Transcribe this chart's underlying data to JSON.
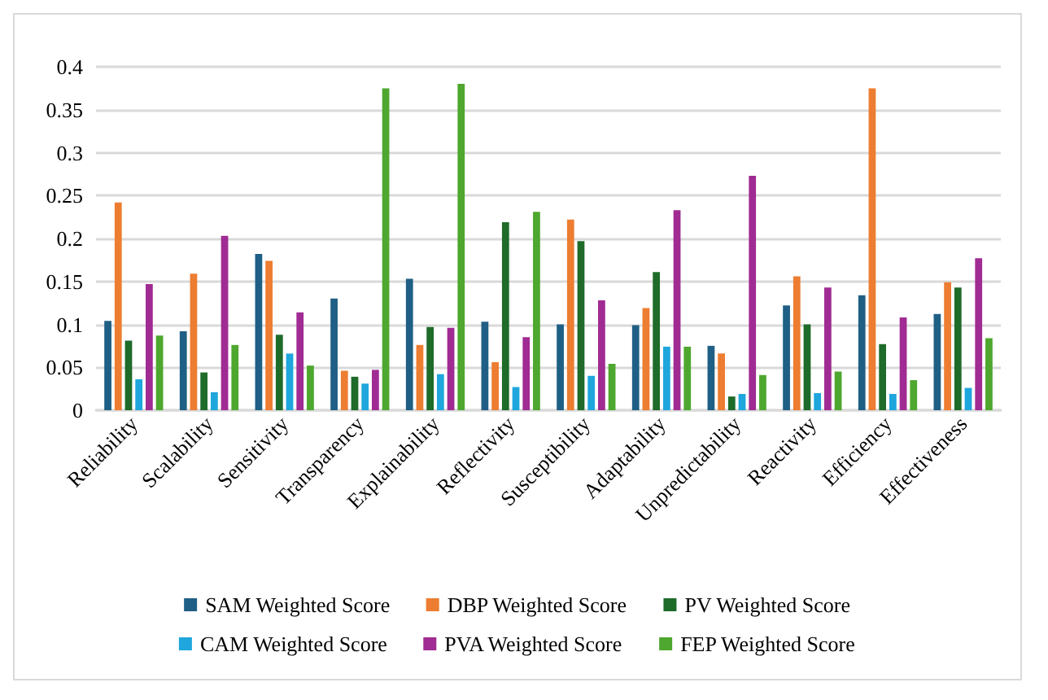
{
  "chart_data": {
    "type": "bar",
    "categories": [
      "Reliability",
      "Scalability",
      "Sensitivity",
      "Transparency",
      "Explainability",
      "Reflectivity",
      "Susceptibility",
      "Adaptability",
      "Unpredictability",
      "Reactivity",
      "Efficiency",
      "Effectiveness"
    ],
    "series": [
      {
        "name": "SAM Weighted Score",
        "color": "#1f5f85",
        "values": [
          0.104,
          0.092,
          0.182,
          0.13,
          0.153,
          0.103,
          0.1,
          0.099,
          0.075,
          0.122,
          0.134,
          0.112
        ]
      },
      {
        "name": "DBP Weighted Score",
        "color": "#ed7d31",
        "values": [
          0.242,
          0.159,
          0.174,
          0.046,
          0.076,
          0.056,
          0.222,
          0.119,
          0.066,
          0.156,
          0.375,
          0.149
        ]
      },
      {
        "name": "PV Weighted Score",
        "color": "#1e6b2a",
        "values": [
          0.081,
          0.044,
          0.088,
          0.039,
          0.097,
          0.219,
          0.197,
          0.161,
          0.016,
          0.1,
          0.077,
          0.143
        ]
      },
      {
        "name": "CAM Weighted Score",
        "color": "#1ea6dd",
        "values": [
          0.036,
          0.021,
          0.066,
          0.031,
          0.042,
          0.027,
          0.04,
          0.074,
          0.019,
          0.02,
          0.019,
          0.026
        ]
      },
      {
        "name": "PVA Weighted Score",
        "color": "#a02b93",
        "values": [
          0.147,
          0.203,
          0.114,
          0.047,
          0.096,
          0.085,
          0.128,
          0.233,
          0.273,
          0.143,
          0.108,
          0.177
        ]
      },
      {
        "name": "FEP Weighted Score",
        "color": "#4ea72e",
        "values": [
          0.087,
          0.076,
          0.052,
          0.375,
          0.38,
          0.231,
          0.054,
          0.074,
          0.041,
          0.045,
          0.035,
          0.084
        ]
      }
    ],
    "ylim": [
      0,
      0.4
    ],
    "yticks": [
      0,
      0.05,
      0.1,
      0.15,
      0.2,
      0.25,
      0.3,
      0.35,
      0.4
    ],
    "grid": "y",
    "legend": "bottom"
  }
}
